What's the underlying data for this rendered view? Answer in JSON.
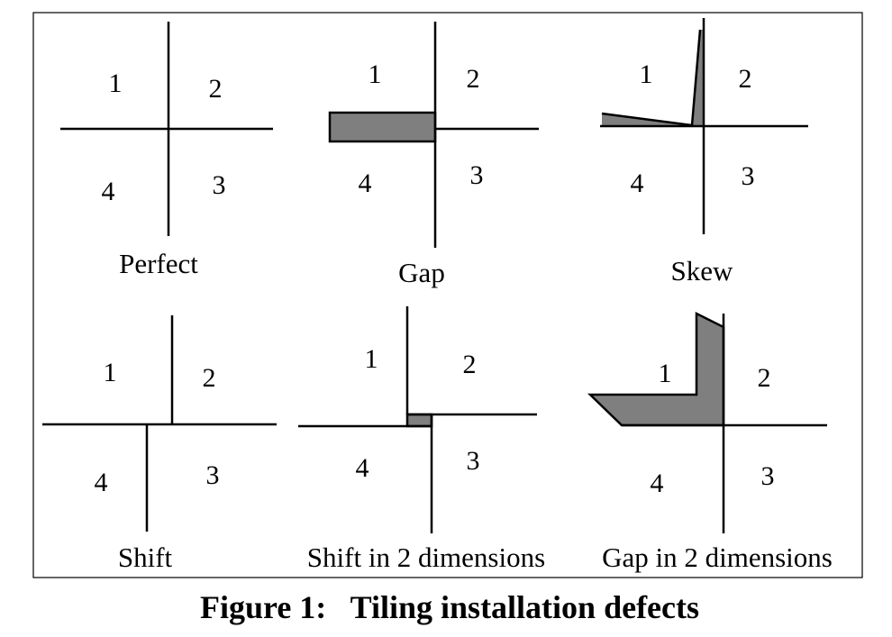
{
  "figure": {
    "caption": "Figure 1:   Tiling installation defects",
    "panels": [
      {
        "name": "perfect",
        "label": "Perfect",
        "tiles": [
          "1",
          "2",
          "3",
          "4"
        ]
      },
      {
        "name": "gap",
        "label": "Gap",
        "tiles": [
          "1",
          "2",
          "3",
          "4"
        ]
      },
      {
        "name": "skew",
        "label": "Skew",
        "tiles": [
          "1",
          "2",
          "3",
          "4"
        ]
      },
      {
        "name": "shift",
        "label": "Shift",
        "tiles": [
          "1",
          "2",
          "3",
          "4"
        ]
      },
      {
        "name": "shift-2d",
        "label": "Shift in 2 dimensions",
        "tiles": [
          "1",
          "2",
          "3",
          "4"
        ]
      },
      {
        "name": "gap-2d",
        "label": "Gap in 2 dimensions",
        "tiles": [
          "1",
          "2",
          "3",
          "4"
        ]
      }
    ]
  }
}
